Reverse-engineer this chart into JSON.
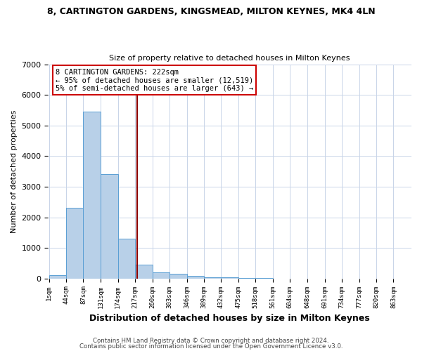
{
  "title": "8, CARTINGTON GARDENS, KINGSMEAD, MILTON KEYNES, MK4 4LN",
  "subtitle": "Size of property relative to detached houses in Milton Keynes",
  "xlabel": "Distribution of detached houses by size in Milton Keynes",
  "ylabel": "Number of detached properties",
  "bin_labels": [
    "1sqm",
    "44sqm",
    "87sqm",
    "131sqm",
    "174sqm",
    "217sqm",
    "260sqm",
    "303sqm",
    "346sqm",
    "389sqm",
    "432sqm",
    "475sqm",
    "518sqm",
    "561sqm",
    "604sqm",
    "648sqm",
    "691sqm",
    "734sqm",
    "777sqm",
    "820sqm",
    "863sqm"
  ],
  "bin_edges": [
    1,
    44,
    87,
    131,
    174,
    217,
    260,
    303,
    346,
    389,
    432,
    475,
    518,
    561,
    604,
    648,
    691,
    734,
    777,
    820,
    863
  ],
  "bar_heights": [
    100,
    2300,
    5450,
    3400,
    1300,
    450,
    200,
    150,
    80,
    50,
    30,
    10,
    5,
    3,
    2,
    1,
    1,
    0,
    0,
    0
  ],
  "bar_color": "#b8d0e8",
  "bar_edge_color": "#5a9fd4",
  "vline_x": 222,
  "vline_color": "#8b0000",
  "annotation_text": "8 CARTINGTON GARDENS: 222sqm\n← 95% of detached houses are smaller (12,519)\n5% of semi-detached houses are larger (643) →",
  "annotation_box_color": "#ffffff",
  "annotation_box_edge": "#cc0000",
  "ylim": [
    0,
    7000
  ],
  "yticks": [
    0,
    1000,
    2000,
    3000,
    4000,
    5000,
    6000,
    7000
  ],
  "footer_line1": "Contains HM Land Registry data © Crown copyright and database right 2024.",
  "footer_line2": "Contains public sector information licensed under the Open Government Licence v3.0.",
  "bg_color": "#ffffff",
  "grid_color": "#c8d4e8"
}
